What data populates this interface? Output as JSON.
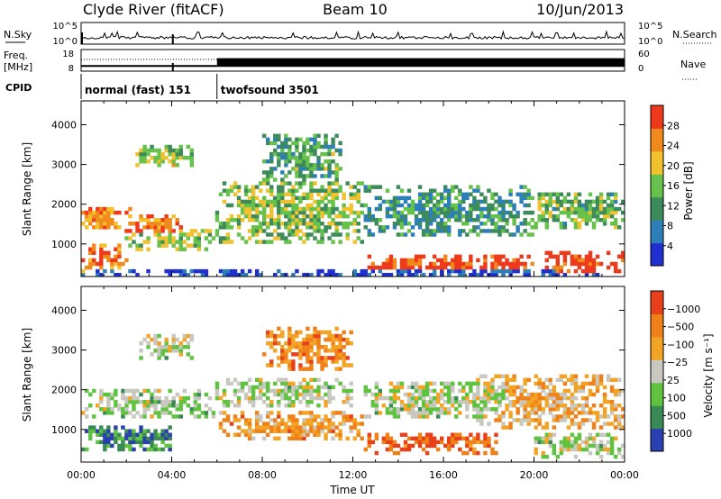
{
  "header": {
    "station": "Clyde River (fitACF)",
    "beam": "Beam 10",
    "date": "10/Jun/2013"
  },
  "status_panel": {
    "nsky_label": "N.Sky",
    "nsky_ticks": [
      "10^5",
      "10^0"
    ],
    "nsearch_label": "N.Search",
    "nsearch_ticks": [
      "10^5",
      "10^0"
    ],
    "freq_label_1": "Freq.",
    "freq_label_2": "[MHz]",
    "freq_ticks": [
      "18",
      "8"
    ],
    "nave_label": "Nave",
    "nave_ticks": [
      "60",
      "0"
    ],
    "cpid_label": "CPID",
    "cpid_modes": [
      {
        "label": "normal (fast) 151",
        "start_hour": 0,
        "end_hour": 6
      },
      {
        "label": "twofsound 3501",
        "start_hour": 6,
        "end_hour": 24
      }
    ],
    "noise_spikes_hours": [
      4.05
    ],
    "nsky_baseline": 1.5,
    "freq_high_mhz": 14,
    "freq_low_mhz": 10,
    "nave_level": 25
  },
  "chart_data": [
    {
      "type": "heatmap",
      "name": "power-panel",
      "ylabel": "Slant Range [km]",
      "ylim": [
        180,
        4600
      ],
      "yticks": [
        "1000",
        "2000",
        "3000",
        "4000"
      ],
      "ytick_values": [
        1000,
        2000,
        3000,
        4000
      ],
      "xlim": [
        0,
        24
      ],
      "colorbar_label": "Power [dB]",
      "colorbar_ticks": [
        "4",
        "8",
        "12",
        "16",
        "20",
        "24",
        "28"
      ],
      "colorbar_values": [
        4,
        8,
        12,
        16,
        20,
        24,
        28
      ],
      "colors": [
        "#2030d0",
        "#2c7fb8",
        "#3d8a5a",
        "#66c24a",
        "#f2c12e",
        "#f08a1c",
        "#ee3a1a"
      ],
      "bands": [
        {
          "t0": 0.0,
          "t1": 2.2,
          "r0": 1350,
          "r1": 1900,
          "level": 0.75
        },
        {
          "t0": 2.0,
          "t1": 4.6,
          "r0": 1200,
          "r1": 1700,
          "level": 0.8
        },
        {
          "t0": 0.0,
          "t1": 2.0,
          "r0": 300,
          "r1": 1000,
          "level": 0.8
        },
        {
          "t0": 2.0,
          "t1": 6.0,
          "r0": 800,
          "r1": 1400,
          "level": 0.55
        },
        {
          "t0": 2.2,
          "t1": 5.0,
          "r0": 2900,
          "r1": 3500,
          "level": 0.55
        },
        {
          "t0": 6.0,
          "t1": 12.5,
          "r0": 1000,
          "r1": 2600,
          "level": 0.5
        },
        {
          "t0": 8.0,
          "t1": 11.5,
          "r0": 2500,
          "r1": 3800,
          "level": 0.4
        },
        {
          "t0": 12.5,
          "t1": 20.0,
          "r0": 1200,
          "r1": 2500,
          "level": 0.35
        },
        {
          "t0": 12.5,
          "t1": 20.0,
          "r0": 250,
          "r1": 700,
          "level": 0.95
        },
        {
          "t0": 20.0,
          "t1": 24.0,
          "r0": 1400,
          "r1": 2300,
          "level": 0.45
        },
        {
          "t0": 20.5,
          "t1": 24.0,
          "r0": 250,
          "r1": 800,
          "level": 0.95
        },
        {
          "t0": 0.0,
          "t1": 24.0,
          "r0": 180,
          "r1": 350,
          "level": 0.1
        }
      ]
    },
    {
      "type": "heatmap",
      "name": "velocity-panel",
      "ylabel": "Slant Range [km]",
      "ylim": [
        180,
        4600
      ],
      "yticks": [
        "1000",
        "2000",
        "3000",
        "4000"
      ],
      "ytick_values": [
        1000,
        2000,
        3000,
        4000
      ],
      "xlim": [
        0,
        24
      ],
      "xlabel": "Time UT",
      "xticks": [
        "00:00",
        "04:00",
        "08:00",
        "12:00",
        "16:00",
        "20:00",
        "00:00"
      ],
      "xtick_values": [
        0,
        4,
        8,
        12,
        16,
        20,
        24
      ],
      "colorbar_label": "Velocity [m s⁻¹]",
      "colorbar_ticks": [
        "1000",
        "500",
        "100",
        "25",
        "−25",
        "−100",
        "−500",
        "−1000"
      ],
      "colors": [
        "#2a3fb0",
        "#3a8a55",
        "#5fc33f",
        "#c8c8c0",
        "#f4a425",
        "#f08018",
        "#e8401a"
      ],
      "bands": [
        {
          "t0": 0.0,
          "t1": 6.0,
          "r0": 1300,
          "r1": 2000,
          "level": 0.43
        },
        {
          "t0": 0.0,
          "t1": 4.0,
          "r0": 500,
          "r1": 1100,
          "level": 0.2
        },
        {
          "t0": 2.5,
          "t1": 5.0,
          "r0": 2800,
          "r1": 3400,
          "level": 0.45
        },
        {
          "t0": 6.0,
          "t1": 12.5,
          "r0": 700,
          "r1": 1500,
          "level": 0.7
        },
        {
          "t0": 8.0,
          "t1": 12.0,
          "r0": 2500,
          "r1": 3600,
          "level": 0.75
        },
        {
          "t0": 6.0,
          "t1": 12.0,
          "r0": 1600,
          "r1": 2300,
          "level": 0.45
        },
        {
          "t0": 12.5,
          "t1": 18.5,
          "r0": 400,
          "r1": 900,
          "level": 0.85
        },
        {
          "t0": 12.5,
          "t1": 20.0,
          "r0": 1300,
          "r1": 2200,
          "level": 0.45
        },
        {
          "t0": 17.5,
          "t1": 24.0,
          "r0": 1000,
          "r1": 2400,
          "level": 0.65
        },
        {
          "t0": 20.0,
          "t1": 24.0,
          "r0": 300,
          "r1": 900,
          "level": 0.45
        }
      ]
    }
  ]
}
